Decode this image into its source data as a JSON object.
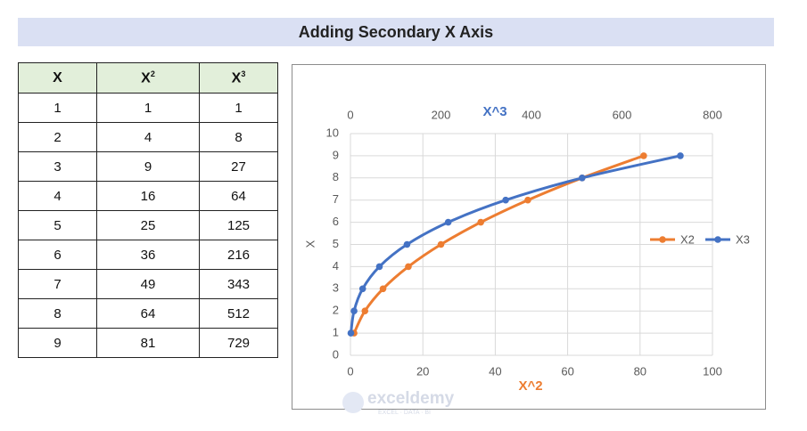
{
  "header": {
    "title": "Adding Secondary X Axis"
  },
  "table": {
    "header": [
      {
        "text": "X"
      },
      {
        "text": "X",
        "sup": "2"
      },
      {
        "text": "X",
        "sup": "3"
      }
    ],
    "rows": [
      [
        1,
        1,
        1
      ],
      [
        2,
        4,
        8
      ],
      [
        3,
        9,
        27
      ],
      [
        4,
        16,
        64
      ],
      [
        5,
        25,
        125
      ],
      [
        6,
        36,
        216
      ],
      [
        7,
        49,
        343
      ],
      [
        8,
        64,
        512
      ],
      [
        9,
        81,
        729
      ]
    ]
  },
  "chart_data": {
    "type": "scatter",
    "x_label": "X^2",
    "x2_label": "X^3",
    "y_label": "X",
    "series": [
      {
        "name": "X2",
        "color": "#ed7d31",
        "x": [
          1,
          4,
          9,
          16,
          25,
          36,
          49,
          64,
          81
        ],
        "values": [
          1,
          2,
          3,
          4,
          5,
          6,
          7,
          8,
          9
        ]
      },
      {
        "name": "X3",
        "color": "#4472c4",
        "axis": "x2",
        "x": [
          1,
          8,
          27,
          64,
          125,
          216,
          343,
          512,
          729
        ],
        "values": [
          1,
          2,
          3,
          4,
          5,
          6,
          7,
          8,
          9
        ]
      }
    ],
    "xlim": [
      0,
      100
    ],
    "xticks": [
      0,
      20,
      40,
      60,
      80,
      100
    ],
    "x2lim": [
      0,
      800
    ],
    "x2ticks": [
      0,
      200,
      400,
      600,
      800
    ],
    "ylim": [
      0,
      10
    ],
    "yticks": [
      0,
      1,
      2,
      3,
      4,
      5,
      6,
      7,
      8,
      9,
      10
    ],
    "grid": true,
    "legend": "right",
    "smooth": true
  },
  "watermark": {
    "name": "exceldemy",
    "tagline": "EXCEL · DATA · BI"
  }
}
